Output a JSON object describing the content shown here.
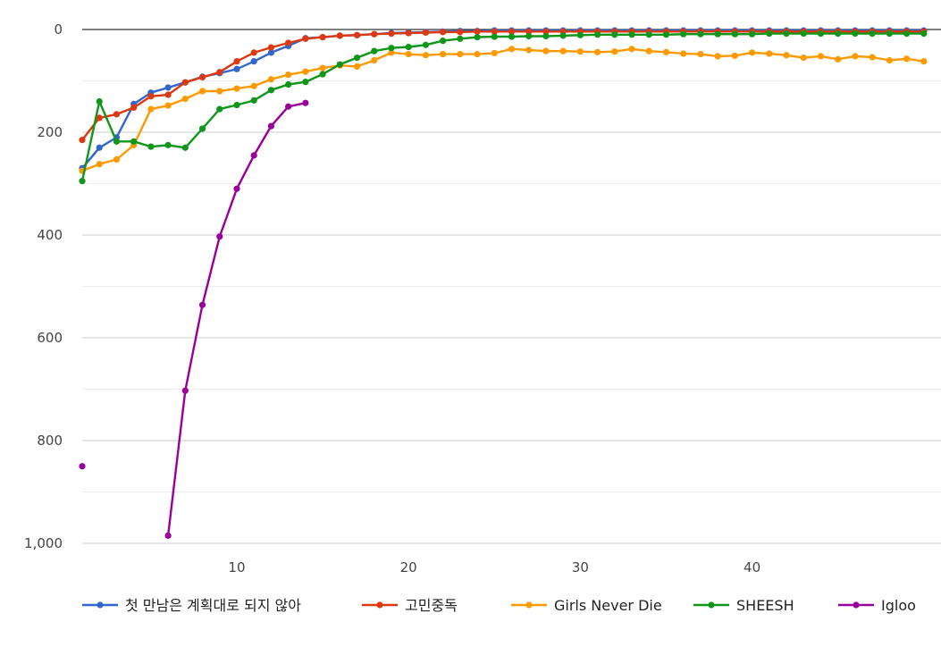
{
  "chart_data": {
    "type": "line",
    "title": "",
    "xlabel": "",
    "ylabel": "",
    "xlim": [
      1,
      51
    ],
    "ylim": [
      0,
      1000
    ],
    "y_reversed": true,
    "x_ticks": [
      10,
      20,
      30,
      40
    ],
    "x_tick_labels": [
      "10",
      "20",
      "30",
      "40"
    ],
    "y_ticks": [
      0,
      200,
      400,
      600,
      800,
      1000
    ],
    "y_tick_labels": [
      "0",
      "200",
      "400",
      "600",
      "800",
      "1,000"
    ],
    "grid": true,
    "legend_position": "bottom",
    "series": [
      {
        "name": "첫 만남은 계획대로 되지 않아",
        "color": "#3366cc",
        "points": [
          [
            1,
            270
          ],
          [
            2,
            230
          ],
          [
            3,
            210
          ],
          [
            4,
            145
          ],
          [
            5,
            123
          ],
          [
            6,
            113
          ],
          [
            7,
            103
          ],
          [
            8,
            92
          ],
          [
            9,
            85
          ],
          [
            10,
            77
          ],
          [
            11,
            62
          ],
          [
            12,
            45
          ],
          [
            13,
            32
          ],
          [
            14,
            17
          ],
          [
            15,
            15
          ],
          [
            16,
            12
          ],
          [
            17,
            11
          ],
          [
            18,
            9
          ],
          [
            19,
            7
          ],
          [
            20,
            6
          ],
          [
            21,
            5
          ],
          [
            22,
            4
          ],
          [
            23,
            3
          ],
          [
            24,
            3
          ],
          [
            25,
            2
          ],
          [
            26,
            2
          ],
          [
            27,
            2
          ],
          [
            28,
            2
          ],
          [
            29,
            2
          ],
          [
            30,
            2
          ],
          [
            31,
            2
          ],
          [
            32,
            2
          ],
          [
            33,
            2
          ],
          [
            34,
            2
          ],
          [
            35,
            2
          ],
          [
            36,
            2
          ],
          [
            37,
            2
          ],
          [
            38,
            2
          ],
          [
            39,
            2
          ],
          [
            40,
            2
          ],
          [
            41,
            2
          ],
          [
            42,
            2
          ],
          [
            43,
            2
          ],
          [
            44,
            2
          ],
          [
            45,
            2
          ],
          [
            46,
            2
          ],
          [
            47,
            2
          ],
          [
            48,
            2
          ],
          [
            49,
            2
          ],
          [
            50,
            2
          ]
        ]
      },
      {
        "name": "고민중독",
        "color": "#dc3912",
        "points": [
          [
            1,
            215
          ],
          [
            2,
            172
          ],
          [
            3,
            165
          ],
          [
            4,
            152
          ],
          [
            5,
            130
          ],
          [
            6,
            127
          ],
          [
            7,
            103
          ],
          [
            8,
            93
          ],
          [
            9,
            83
          ],
          [
            10,
            62
          ],
          [
            11,
            45
          ],
          [
            12,
            35
          ],
          [
            13,
            26
          ],
          [
            14,
            18
          ],
          [
            15,
            15
          ],
          [
            16,
            12
          ],
          [
            17,
            11
          ],
          [
            18,
            9
          ],
          [
            19,
            8
          ],
          [
            20,
            7
          ],
          [
            21,
            6
          ],
          [
            22,
            5
          ],
          [
            23,
            5
          ],
          [
            24,
            4
          ],
          [
            25,
            4
          ],
          [
            26,
            4
          ],
          [
            27,
            4
          ],
          [
            28,
            4
          ],
          [
            29,
            4
          ],
          [
            30,
            4
          ],
          [
            31,
            4
          ],
          [
            32,
            4
          ],
          [
            33,
            4
          ],
          [
            34,
            4
          ],
          [
            35,
            4
          ],
          [
            36,
            4
          ],
          [
            37,
            4
          ],
          [
            38,
            4
          ],
          [
            39,
            4
          ],
          [
            40,
            4
          ],
          [
            41,
            4
          ],
          [
            42,
            4
          ],
          [
            43,
            4
          ],
          [
            44,
            4
          ],
          [
            45,
            4
          ],
          [
            46,
            4
          ],
          [
            47,
            4
          ],
          [
            48,
            4
          ],
          [
            49,
            4
          ],
          [
            50,
            4
          ]
        ]
      },
      {
        "name": "Girls Never Die",
        "color": "#ff9900",
        "points": [
          [
            1,
            275
          ],
          [
            2,
            262
          ],
          [
            3,
            253
          ],
          [
            4,
            225
          ],
          [
            5,
            155
          ],
          [
            6,
            148
          ],
          [
            7,
            135
          ],
          [
            8,
            120
          ],
          [
            9,
            120
          ],
          [
            10,
            115
          ],
          [
            11,
            110
          ],
          [
            12,
            97
          ],
          [
            13,
            88
          ],
          [
            14,
            82
          ],
          [
            15,
            75
          ],
          [
            16,
            70
          ],
          [
            17,
            72
          ],
          [
            18,
            60
          ],
          [
            19,
            45
          ],
          [
            20,
            48
          ],
          [
            21,
            50
          ],
          [
            22,
            48
          ],
          [
            23,
            48
          ],
          [
            24,
            48
          ],
          [
            25,
            46
          ],
          [
            26,
            38
          ],
          [
            27,
            40
          ],
          [
            28,
            42
          ],
          [
            29,
            42
          ],
          [
            30,
            43
          ],
          [
            31,
            44
          ],
          [
            32,
            43
          ],
          [
            33,
            38
          ],
          [
            34,
            42
          ],
          [
            35,
            44
          ],
          [
            36,
            47
          ],
          [
            37,
            48
          ],
          [
            38,
            52
          ],
          [
            39,
            51
          ],
          [
            40,
            45
          ],
          [
            41,
            47
          ],
          [
            42,
            50
          ],
          [
            43,
            55
          ],
          [
            44,
            52
          ],
          [
            45,
            58
          ],
          [
            46,
            52
          ],
          [
            47,
            54
          ],
          [
            48,
            60
          ],
          [
            49,
            57
          ],
          [
            50,
            62
          ]
        ]
      },
      {
        "name": "SHEESH",
        "color": "#109618",
        "points": [
          [
            1,
            295
          ],
          [
            2,
            140
          ],
          [
            3,
            218
          ],
          [
            4,
            218
          ],
          [
            5,
            228
          ],
          [
            6,
            225
          ],
          [
            7,
            230
          ],
          [
            8,
            193
          ],
          [
            9,
            155
          ],
          [
            10,
            147
          ],
          [
            11,
            138
          ],
          [
            12,
            118
          ],
          [
            13,
            107
          ],
          [
            14,
            102
          ],
          [
            15,
            87
          ],
          [
            16,
            68
          ],
          [
            17,
            55
          ],
          [
            18,
            42
          ],
          [
            19,
            36
          ],
          [
            20,
            34
          ],
          [
            21,
            30
          ],
          [
            22,
            22
          ],
          [
            23,
            18
          ],
          [
            24,
            15
          ],
          [
            25,
            14
          ],
          [
            26,
            14
          ],
          [
            27,
            13
          ],
          [
            28,
            13
          ],
          [
            29,
            12
          ],
          [
            30,
            11
          ],
          [
            31,
            10
          ],
          [
            32,
            10
          ],
          [
            33,
            10
          ],
          [
            34,
            10
          ],
          [
            35,
            10
          ],
          [
            36,
            9
          ],
          [
            37,
            9
          ],
          [
            38,
            9
          ],
          [
            39,
            9
          ],
          [
            40,
            9
          ],
          [
            41,
            8
          ],
          [
            42,
            8
          ],
          [
            43,
            8
          ],
          [
            44,
            8
          ],
          [
            45,
            8
          ],
          [
            46,
            8
          ],
          [
            47,
            8
          ],
          [
            48,
            8
          ],
          [
            49,
            8
          ],
          [
            50,
            8
          ]
        ]
      },
      {
        "name": "Igloo",
        "color": "#990099",
        "points": [
          [
            1,
            850
          ],
          [
            6,
            985
          ],
          [
            7,
            703
          ],
          [
            8,
            536
          ],
          [
            9,
            403
          ],
          [
            10,
            310
          ],
          [
            11,
            245
          ],
          [
            12,
            188
          ],
          [
            13,
            150
          ],
          [
            14,
            143
          ]
        ]
      }
    ]
  }
}
